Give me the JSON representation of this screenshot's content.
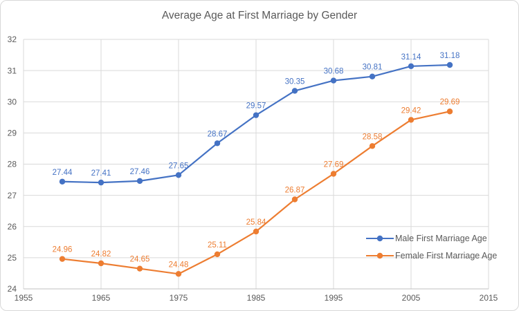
{
  "window": {
    "background": "#ffffff",
    "frame_border_color": "#d8d8d8"
  },
  "chart_data": {
    "type": "line",
    "title": "Average Age at First Marriage by Gender",
    "x": [
      1960,
      1965,
      1970,
      1975,
      1980,
      1985,
      1990,
      1995,
      2000,
      2005,
      2010
    ],
    "series": [
      {
        "name": "Male First Marriage Age",
        "color": "#4472C4",
        "values": [
          27.44,
          27.41,
          27.46,
          27.65,
          28.67,
          29.57,
          30.35,
          30.68,
          30.81,
          31.14,
          31.18
        ]
      },
      {
        "name": "Female First Marriage Age",
        "color": "#ED7D31",
        "values": [
          24.96,
          24.82,
          24.65,
          24.48,
          25.11,
          25.84,
          26.87,
          27.69,
          28.58,
          29.42,
          29.69
        ]
      }
    ],
    "xlim": [
      1955,
      2015
    ],
    "ylim": [
      24,
      32
    ],
    "x_ticks": [
      1955,
      1965,
      1975,
      1985,
      1995,
      2005,
      2015
    ],
    "y_ticks": [
      24,
      25,
      26,
      27,
      28,
      29,
      30,
      31,
      32
    ],
    "grid": true,
    "data_labels": true,
    "legend_position": "inside-lower-right",
    "gridline_color": "#d9d9d9",
    "axis_line_color": "#bfbfbf",
    "axis_text_color": "#595959",
    "title_color": "#595959"
  }
}
